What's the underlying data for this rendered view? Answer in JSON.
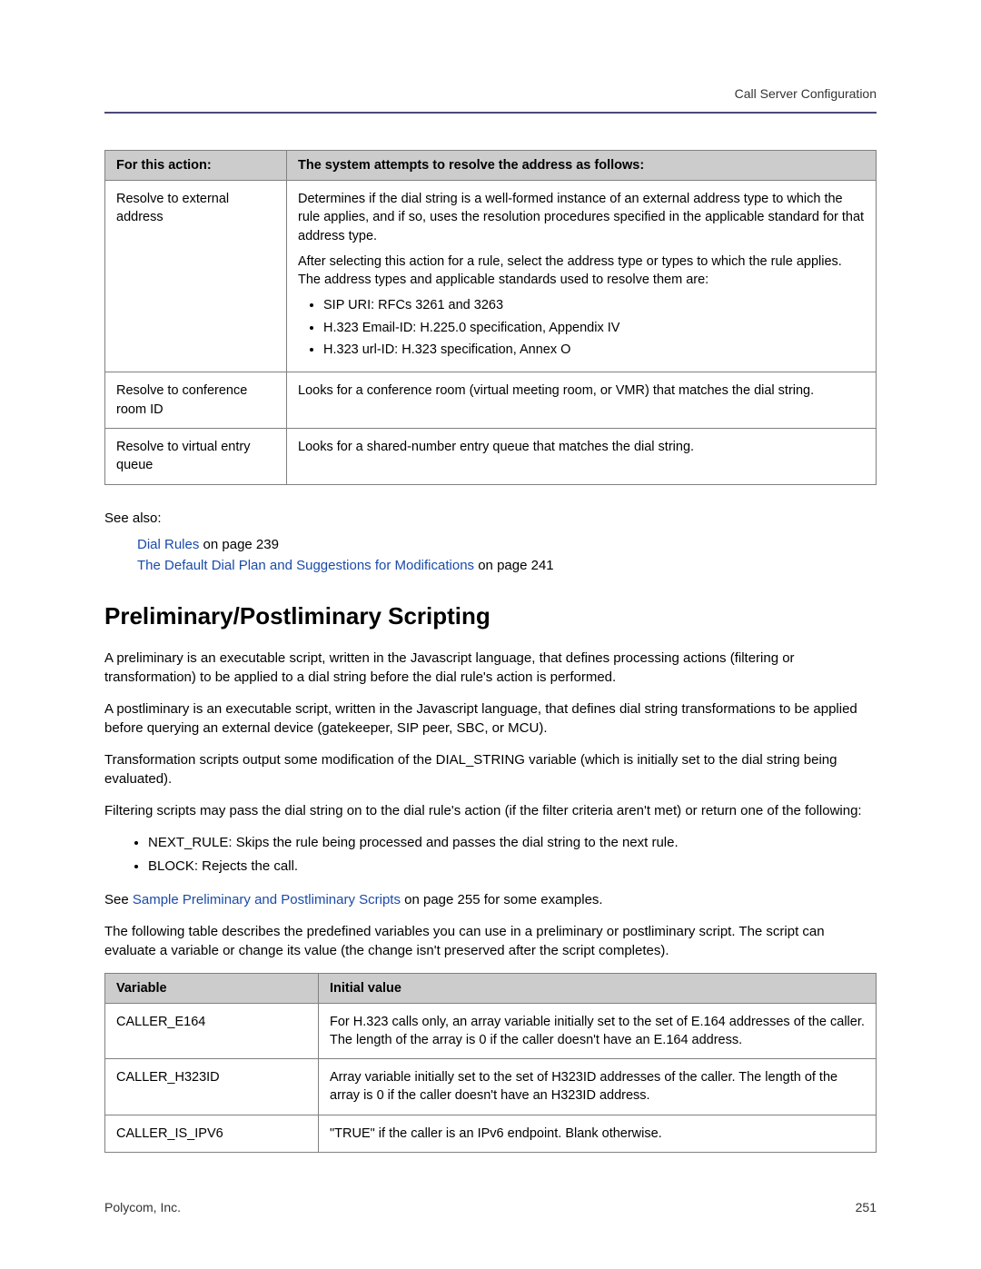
{
  "header": {
    "breadcrumb": "Call Server Configuration"
  },
  "table1": {
    "headers": [
      "For this action:",
      "The system attempts to resolve the address as follows:"
    ],
    "rows": [
      {
        "action": "Resolve to external address",
        "p1": "Determines if the dial string is a well-formed instance of an external address type to which the rule applies, and if so, uses the resolution procedures specified in the applicable standard for that address type.",
        "p2": "After selecting this action for a rule, select the address type or types to which the rule applies. The address types and applicable standards used to resolve them are:",
        "items": [
          "SIP URI: RFCs 3261 and 3263",
          "H.323 Email-ID: H.225.0 specification, Appendix IV",
          "H.323 url-ID: H.323 specification, Annex O"
        ]
      },
      {
        "action": "Resolve to conference room ID",
        "desc": "Looks for a conference room (virtual meeting room, or VMR) that matches the dial string."
      },
      {
        "action": "Resolve to virtual entry queue",
        "desc": "Looks for a shared-number entry queue that matches the dial string."
      }
    ]
  },
  "see_also": {
    "label": "See also:",
    "links": [
      {
        "text": "Dial Rules",
        "suffix": " on page 239"
      },
      {
        "text": "The Default Dial Plan and Suggestions for Modifications",
        "suffix": " on page 241"
      }
    ]
  },
  "section": {
    "heading": "Preliminary/Postliminary Scripting",
    "p1": "A preliminary is an executable script, written in the Javascript language, that defines processing actions (filtering or transformation) to be applied to a dial string before the dial rule's action is performed.",
    "p2": "A postliminary is an executable script, written in the Javascript language, that defines dial string transformations to be applied before querying an external device (gatekeeper, SIP peer, SBC, or MCU).",
    "p3": "Transformation scripts output some modification of the DIAL_STRING variable (which is initially set to the dial string being evaluated).",
    "p4": "Filtering scripts may pass the dial string on to the dial rule's action (if the filter criteria aren't met) or return one of the following:",
    "list": [
      "NEXT_RULE: Skips the rule being processed and passes the dial string to the next rule.",
      "BLOCK: Rejects the call."
    ],
    "p5_pre": "See ",
    "p5_link": "Sample Preliminary and Postliminary Scripts",
    "p5_post": " on page 255 for some examples.",
    "p6": "The following table describes the predefined variables you can use in a preliminary or postliminary script. The script can evaluate a variable or change its value (the change isn't preserved after the script completes)."
  },
  "table2": {
    "headers": [
      "Variable",
      "Initial value"
    ],
    "rows": [
      {
        "var": "CALLER_E164",
        "val": "For H.323 calls only, an array variable initially set to the set of E.164 addresses of the caller. The length of the array is 0 if the caller doesn't have an E.164 address."
      },
      {
        "var": "CALLER_H323ID",
        "val": "Array variable initially set to the set of H323ID addresses of the caller. The length of the array is 0 if the caller doesn't have an H323ID address."
      },
      {
        "var": "CALLER_IS_IPV6",
        "val": "\"TRUE\" if the caller is an IPv6 endpoint. Blank otherwise."
      }
    ]
  },
  "footer": {
    "company": "Polycom, Inc.",
    "page": "251"
  }
}
